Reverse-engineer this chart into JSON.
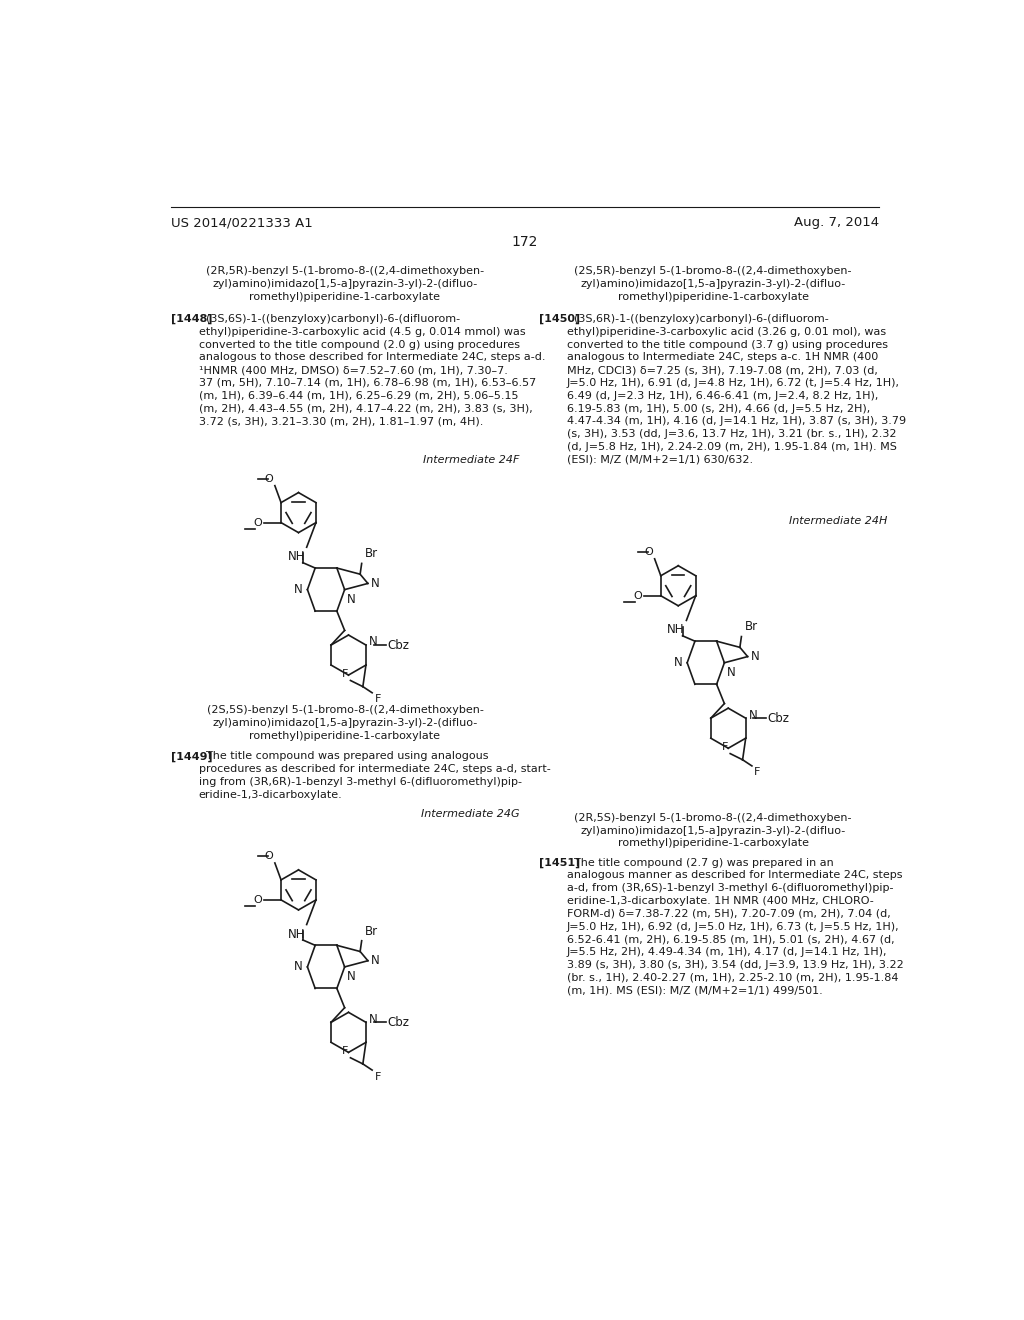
{
  "bg_color": "#ffffff",
  "header_left": "US 2014/0221333 A1",
  "header_right": "Aug. 7, 2014",
  "page_number": "172",
  "left_title_1": "(2R,5R)-benzyl 5-(1-bromo-8-((2,4-dimethoxyben-\nzyl)amino)imidazo[1,5-a]pyrazin-3-yl)-2-(difluo-\nromethyl)piperidine-1-carboxylate",
  "left_ref_1": "[1448]",
  "left_body_1": "  (3S,6S)-1-((benzyloxy)carbonyl)-6-(difluorom-\nethyl)piperidine-3-carboxylic acid (4.5 g, 0.014 mmol) was\nconverted to the title compound (2.0 g) using procedures\nanalogous to those described for Intermediate 24C, steps a-d.\n¹HNMR (400 MHz, DMSO) δ=7.52–7.60 (m, 1H), 7.30–7.\n37 (m, 5H), 7.10–7.14 (m, 1H), 6.78–6.98 (m, 1H), 6.53–6.57\n(m, 1H), 6.39–6.44 (m, 1H), 6.25–6.29 (m, 2H), 5.06–5.15\n(m, 2H), 4.43–4.55 (m, 2H), 4.17–4.22 (m, 2H), 3.83 (s, 3H),\n3.72 (s, 3H), 3.21–3.30 (m, 2H), 1.81–1.97 (m, 4H).",
  "left_intermediate_1": "Intermediate 24F",
  "left_title_2": "(2S,5S)-benzyl 5-(1-bromo-8-((2,4-dimethoxyben-\nzyl)amino)imidazo[1,5-a]pyrazin-3-yl)-2-(difluo-\nromethyl)piperidine-1-carboxylate",
  "left_ref_2": "[1449]",
  "left_body_2": "  The title compound was prepared using analogous\nprocedures as described for intermediate 24C, steps a-d, start-\ning from (3R,6R)-1-benzyl 3-methyl 6-(difluoromethyl)pip-\neridine-1,3-dicarboxylate.",
  "left_intermediate_2": "Intermediate 24G",
  "right_title_1": "(2S,5R)-benzyl 5-(1-bromo-8-((2,4-dimethoxyben-\nzyl)amino)imidazo[1,5-a]pyrazin-3-yl)-2-(difluo-\nromethyl)piperidine-1-carboxylate",
  "right_ref_1": "[1450]",
  "right_body_1": "  (3S,6R)-1-((benzyloxy)carbonyl)-6-(difluorom-\nethyl)piperidine-3-carboxylic acid (3.26 g, 0.01 mol), was\nconverted to the title compound (3.7 g) using procedures\nanalogous to Intermediate 24C, steps a-c. 1H NMR (400\nMHz, CDCl3) δ=7.25 (s, 3H), 7.19-7.08 (m, 2H), 7.03 (d,\nJ=5.0 Hz, 1H), 6.91 (d, J=4.8 Hz, 1H), 6.72 (t, J=5.4 Hz, 1H),\n6.49 (d, J=2.3 Hz, 1H), 6.46-6.41 (m, J=2.4, 8.2 Hz, 1H),\n6.19-5.83 (m, 1H), 5.00 (s, 2H), 4.66 (d, J=5.5 Hz, 2H),\n4.47-4.34 (m, 1H), 4.16 (d, J=14.1 Hz, 1H), 3.87 (s, 3H), 3.79\n(s, 3H), 3.53 (dd, J=3.6, 13.7 Hz, 1H), 3.21 (br. s., 1H), 2.32\n(d, J=5.8 Hz, 1H), 2.24-2.09 (m, 2H), 1.95-1.84 (m, 1H). MS\n(ESI): M/Z (M/M+2=1/1) 630/632.",
  "right_intermediate_1": "Intermediate 24H",
  "right_title_2": "(2R,5S)-benzyl 5-(1-bromo-8-((2,4-dimethoxyben-\nzyl)amino)imidazo[1,5-a]pyrazin-3-yl)-2-(difluo-\nromethyl)piperidine-1-carboxylate",
  "right_ref_2": "[1451]",
  "right_body_2": "  The title compound (2.7 g) was prepared in an\nanalogous manner as described for Intermediate 24C, steps\na-d, from (3R,6S)-1-benzyl 3-methyl 6-(difluoromethyl)pip-\neridine-1,3-dicarboxylate. 1H NMR (400 MHz, CHLORO-\nFORM-d) δ=7.38-7.22 (m, 5H), 7.20-7.09 (m, 2H), 7.04 (d,\nJ=5.0 Hz, 1H), 6.92 (d, J=5.0 Hz, 1H), 6.73 (t, J=5.5 Hz, 1H),\n6.52-6.41 (m, 2H), 6.19-5.85 (m, 1H), 5.01 (s, 2H), 4.67 (d,\nJ=5.5 Hz, 2H), 4.49-4.34 (m, 1H), 4.17 (d, J=14.1 Hz, 1H),\n3.89 (s, 3H), 3.80 (s, 3H), 3.54 (dd, J=3.9, 13.9 Hz, 1H), 3.22\n(br. s., 1H), 2.40-2.27 (m, 1H), 2.25-2.10 (m, 2H), 1.95-1.84\n(m, 1H). MS (ESI): M/Z (M/M+2=1/1) 499/501."
}
